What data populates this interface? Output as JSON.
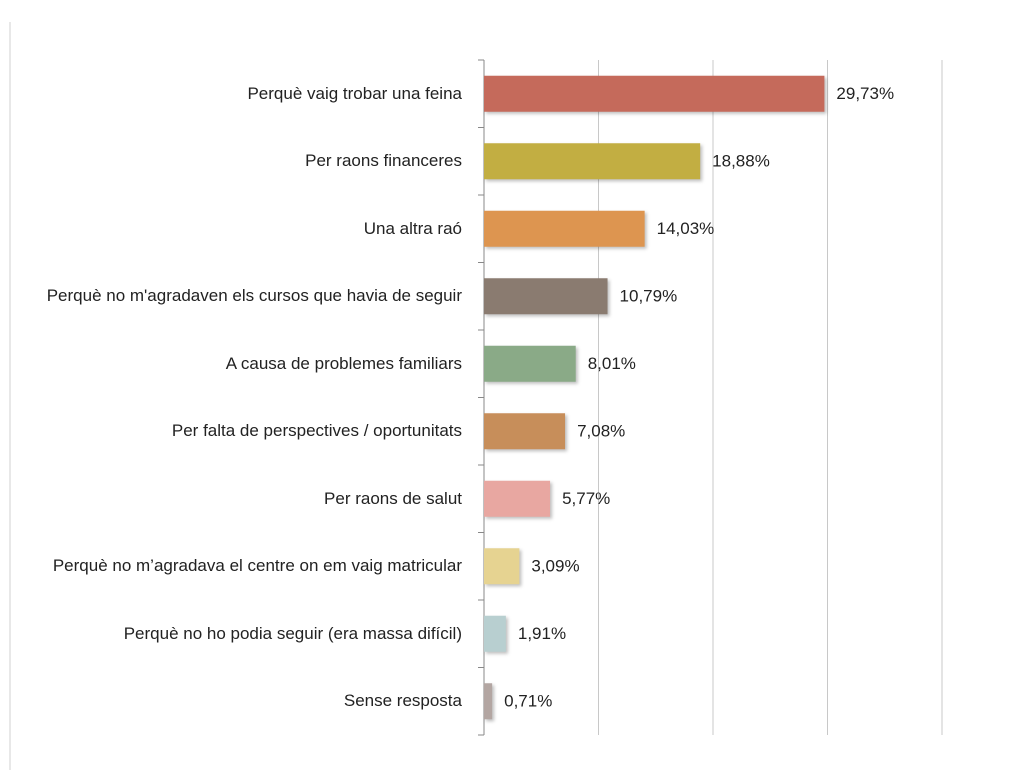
{
  "chart_data": {
    "type": "barh",
    "categories": [
      "Perquè vaig trobar una feina",
      "Per raons financeres",
      "Una altra raó",
      "Perquè no m'agradaven els cursos que havia de seguir",
      "A causa de problemes familiars",
      "Per falta de perspectives / oportunitats",
      "Per raons de salut",
      "Perquè no m’agradava el centre on em vaig matricular",
      "Perquè no ho podia seguir (era massa difícil)",
      "Sense resposta"
    ],
    "values": [
      29.73,
      18.88,
      14.03,
      10.79,
      8.01,
      7.08,
      5.77,
      3.09,
      1.91,
      0.71
    ],
    "value_labels": [
      "29,73%",
      "18,88%",
      "14,03%",
      "10,79%",
      "8,01%",
      "7,08%",
      "5,77%",
      "3,09%",
      "1,91%",
      "0,71%"
    ],
    "colors": [
      "#c56a5b",
      "#c2ae42",
      "#dd9550",
      "#8a7b70",
      "#8aaa87",
      "#c78e5a",
      "#e8a7a1",
      "#e6d391",
      "#b8cfd0",
      "#b3a6a2"
    ],
    "xlim": [
      0,
      40
    ],
    "xticks": [
      0,
      10,
      20,
      30,
      40
    ],
    "grid": true
  }
}
